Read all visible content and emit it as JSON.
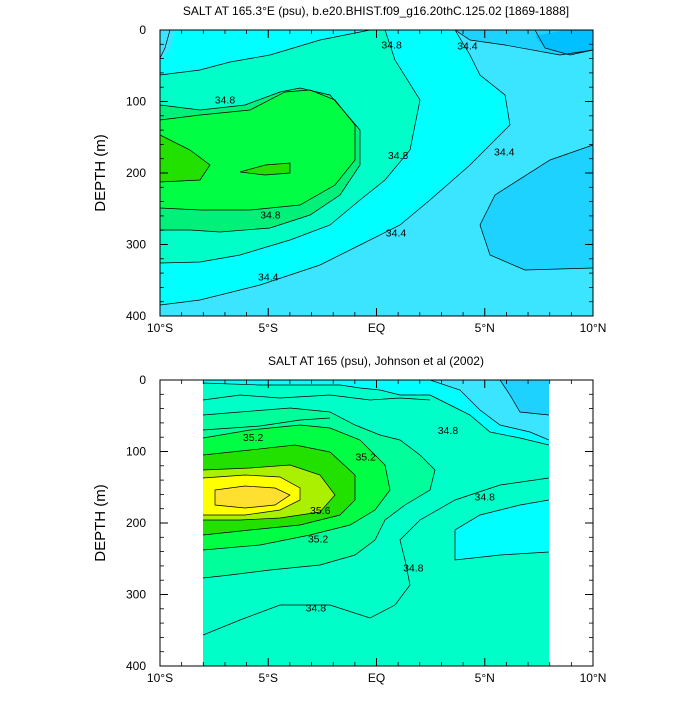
{
  "chart_data": [
    {
      "type": "contour",
      "title": "SALT AT 165.3°E (psu), b.e20.BHIST.f09_g16.20thC.125.02 [1869-1888]",
      "xlabel": "",
      "ylabel": "DEPTH (m)",
      "x_ticks": [
        "10°S",
        "5°S",
        "EQ",
        "5°N",
        "10°N"
      ],
      "y_ticks": [
        "0",
        "100",
        "200",
        "300",
        "400"
      ],
      "xlim": [
        -10,
        10
      ],
      "ylim": [
        400,
        0
      ],
      "y_reversed": true,
      "data_extent_lat": [
        -10,
        10
      ],
      "contour_interval": 0.2,
      "contour_labels": [
        {
          "text": "34.8",
          "lat": -7.0,
          "depth": 97
        },
        {
          "text": "34.8",
          "lat": 0.7,
          "depth": 20
        },
        {
          "text": "34.4",
          "lat": 4.2,
          "depth": 22
        },
        {
          "text": "34.8",
          "lat": 1.0,
          "depth": 175
        },
        {
          "text": "34.4",
          "lat": 5.9,
          "depth": 170
        },
        {
          "text": "34.8",
          "lat": -4.9,
          "depth": 258
        },
        {
          "text": "34.4",
          "lat": 0.9,
          "depth": 283
        },
        {
          "text": "34.4",
          "lat": -5.0,
          "depth": 345
        }
      ]
    },
    {
      "type": "contour",
      "title": "SALT AT 165 (psu), Johnson et al (2002)",
      "xlabel": "",
      "ylabel": "DEPTH (m)",
      "x_ticks": [
        "10°S",
        "5°S",
        "EQ",
        "5°N",
        "10°N"
      ],
      "y_ticks": [
        "0",
        "100",
        "200",
        "300",
        "400"
      ],
      "xlim": [
        -10,
        10
      ],
      "ylim": [
        400,
        0
      ],
      "y_reversed": true,
      "data_extent_lat": [
        -8,
        8
      ],
      "contour_interval": 0.2,
      "contour_labels": [
        {
          "text": "35.2",
          "lat": -5.7,
          "depth": 80
        },
        {
          "text": "35.2",
          "lat": -0.5,
          "depth": 107
        },
        {
          "text": "34.8",
          "lat": 3.3,
          "depth": 70
        },
        {
          "text": "35.6",
          "lat": -2.6,
          "depth": 182
        },
        {
          "text": "35.2",
          "lat": -2.7,
          "depth": 222
        },
        {
          "text": "34.8",
          "lat": 5.0,
          "depth": 163
        },
        {
          "text": "34.8",
          "lat": 1.7,
          "depth": 262
        },
        {
          "text": "34.8",
          "lat": -2.8,
          "depth": 318
        }
      ]
    }
  ]
}
